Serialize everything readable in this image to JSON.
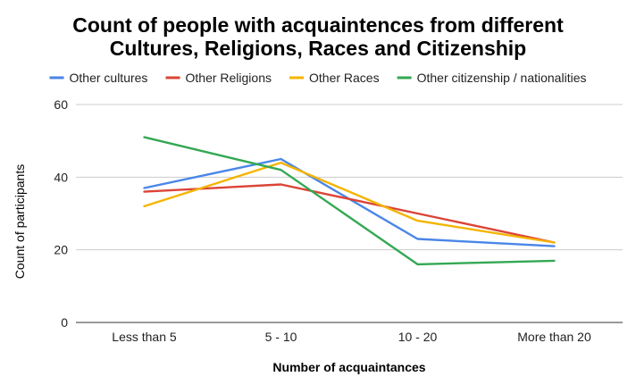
{
  "chart_data": {
    "type": "line",
    "title": [
      "Count of people with acquaintences from different",
      "Cultures, Religions, Races and Citizenship"
    ],
    "xlabel": "Number of acquaintances",
    "ylabel": "Count of participants",
    "categories": [
      "Less than 5",
      "5 - 10",
      "10 - 20",
      "More than 20"
    ],
    "ylim": [
      0,
      60
    ],
    "yticks": [
      0,
      20,
      40,
      60
    ],
    "grid": true,
    "legend_position": "top",
    "series": [
      {
        "name": "Other cultures",
        "color": "#4a86e8",
        "values": [
          37,
          45,
          23,
          21
        ]
      },
      {
        "name": "Other Religions",
        "color": "#db4437",
        "values": [
          36,
          38,
          30,
          22
        ]
      },
      {
        "name": "Other Races",
        "color": "#f4b400",
        "values": [
          32,
          44,
          28,
          22
        ]
      },
      {
        "name": "Other citizenship / nationalities",
        "color": "#34a853",
        "values": [
          51,
          42,
          16,
          17
        ]
      }
    ]
  }
}
